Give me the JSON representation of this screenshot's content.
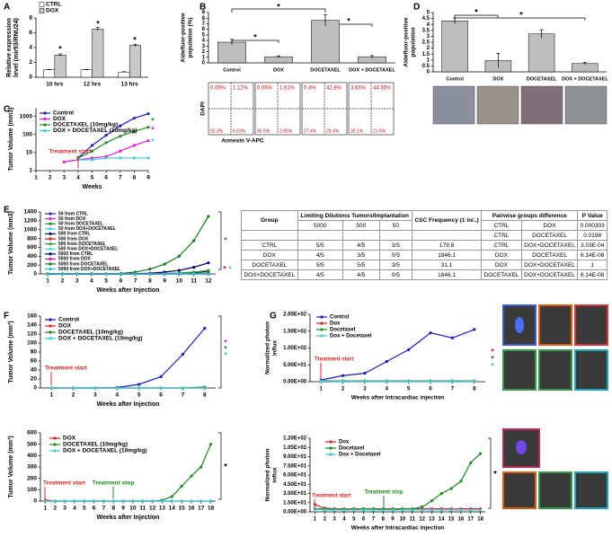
{
  "panel_labels": [
    "A",
    "B",
    "C",
    "D",
    "E",
    "F",
    "G"
  ],
  "flow_cytometry": {
    "ylabel": "DAPI",
    "xlabel": "Annexin V-APC",
    "quadrant_labels": [
      "0.09%",
      "1.12%",
      "0.06%",
      "1.61%",
      "0.4%",
      "42.8%",
      "3.65%",
      "44.65%",
      "92.3%",
      "6.63%",
      "95.5%",
      "2.85%",
      "27.4%",
      "29.4%",
      "30.1%",
      "21.6%"
    ]
  },
  "table": {
    "header": [
      "Group",
      "Limiting Dilutions Tumors/Implantation",
      "CSC Frequency (1 in/..)",
      "Pairwise groups difference",
      "P Value"
    ],
    "dilutions": [
      "5000",
      "500",
      "50"
    ],
    "pairs": [
      [
        "CTRL",
        "DOX",
        "0.000303"
      ],
      [
        "CTRL",
        "DOCETAXEL",
        "0.0198"
      ],
      [
        "CTRL",
        "DOX+DOCETAXEL",
        "3.03E-04"
      ],
      [
        "DOX",
        "DOCETAXEL",
        "6.14E-08"
      ],
      [
        "DOX",
        "DOX+DOCETAXEL",
        "1"
      ],
      [
        "DOCETAXEL",
        "DOX+DOCETAXEL",
        "6.14E-08"
      ]
    ],
    "groups": [
      [
        "CTRL",
        "5/5",
        "4/5",
        "3/5",
        "179.8"
      ],
      [
        "DOX",
        "4/5",
        "3/5",
        "0/5",
        "1846.1"
      ],
      [
        "DOCETAXEL",
        "5/5",
        "5/5",
        "3/5",
        "31.1"
      ],
      [
        "DOX+DOCETAXEL",
        "4/5",
        "4/5",
        "0/5",
        "1846.1"
      ]
    ]
  },
  "chart_data": [
    {
      "type": "bar",
      "categories": [
        "10 hrs",
        "12 hrs",
        "13 hrs"
      ],
      "series": [
        {
          "name": "CTRL",
          "color": "#ffffff",
          "values": [
            1,
            1,
            0.7
          ],
          "errors": [
            0.05,
            0.05,
            0.05
          ]
        },
        {
          "name": "DOX",
          "color": "#c8c8c8",
          "values": [
            3,
            6.5,
            4.3
          ],
          "errors": [
            0.15,
            0.2,
            0.15
          ]
        }
      ],
      "ylabel": [
        "Relative expression",
        "level (mir93/RNU24)"
      ],
      "ylim": [
        0,
        8
      ],
      "yticks": [
        0,
        2,
        4,
        6,
        8
      ],
      "legend": "upper left",
      "significance": [
        "*",
        "*",
        "*"
      ]
    },
    {
      "type": "bar",
      "categories": [
        "Control",
        "DOX",
        "DOCETAXEL",
        "DOX + DOCETAXEL"
      ],
      "color": "#bdbdbd",
      "values": [
        3.7,
        1.1,
        7.6,
        1.1
      ],
      "errors": [
        0.5,
        0.15,
        1.0,
        0.2
      ],
      "ylabel": [
        "Aldefluor-positive",
        "population (%)"
      ],
      "ylim": [
        0,
        9
      ],
      "yticks": [
        0,
        1,
        2,
        3,
        4,
        5,
        6,
        7,
        8,
        9
      ],
      "significance": [
        "*",
        "*",
        "*"
      ]
    },
    {
      "type": "bar",
      "categories": [
        "Control",
        "DOX",
        "DOCETAXEL",
        "DOX + DOCETAXEL"
      ],
      "color": "#bdbdbd",
      "values": [
        4.3,
        0.95,
        3.2,
        0.7
      ],
      "errors": [
        0.25,
        0.6,
        0.35,
        0.1
      ],
      "ylabel": [
        "Aldefluor-positive",
        "population"
      ],
      "ylim": [
        0,
        5
      ],
      "yticks": [
        0,
        0.5,
        1,
        1.5,
        2,
        2.5,
        3,
        3.5,
        4,
        4.5,
        5
      ],
      "significance": [
        "*",
        "*"
      ]
    },
    {
      "type": "line",
      "log_y": true,
      "x": [
        1,
        2,
        3,
        4,
        5,
        6,
        7,
        8,
        9
      ],
      "xlim": [
        1,
        9
      ],
      "xticks": [
        1,
        2,
        3,
        4,
        5,
        6,
        7,
        8,
        9
      ],
      "ylim": [
        1,
        3000
      ],
      "yticks": [
        1,
        10,
        100,
        1000
      ],
      "xlabel": "Weeks",
      "ylabel": "Tumor Volume (mm3)",
      "legend": "upper left",
      "series": [
        {
          "name": "Control",
          "color": "#1a1acc",
          "values": [
            null,
            null,
            null,
            5,
            25,
            90,
            300,
            800,
            1400
          ]
        },
        {
          "name": "DOX",
          "color": "#e619e6",
          "values": [
            null,
            null,
            3,
            4,
            5,
            6,
            12,
            25,
            45
          ]
        },
        {
          "name": "DOCETAXEL (10mg/kg)",
          "color": "#1a8c1a",
          "values": [
            null,
            null,
            null,
            5,
            12,
            35,
            80,
            150,
            250
          ]
        },
        {
          "name": "DOX + DOCETAXEL (10mg/kg)",
          "color": "#33ccdd",
          "values": [
            null,
            null,
            null,
            4,
            4,
            5,
            5,
            5,
            5
          ]
        }
      ],
      "annotations": [
        "Treatment start"
      ],
      "significance": [
        "*",
        "*",
        "*"
      ]
    },
    {
      "type": "line",
      "x": [
        1,
        2,
        3,
        4,
        5,
        6,
        7,
        8,
        9,
        10,
        11,
        12
      ],
      "xlim": [
        0.5,
        12.5
      ],
      "xticks": [
        1,
        2,
        3,
        4,
        5,
        6,
        7,
        8,
        9,
        10,
        11,
        12
      ],
      "ylim": [
        0,
        1400
      ],
      "yticks": [
        0,
        200,
        400,
        600,
        800,
        1000,
        1200,
        1400
      ],
      "xlabel": "Weeks after Injection",
      "ylabel": "Tumor Volume (mm3)",
      "legend": "upper left",
      "series": [
        {
          "name": "50 from CTRL",
          "color": "#2a2ad0",
          "values": [
            0,
            0,
            0,
            0,
            0,
            0,
            0,
            0,
            0,
            0,
            5,
            10
          ]
        },
        {
          "name": "50 from DOX",
          "color": "#e619e6",
          "values": [
            0,
            0,
            0,
            0,
            0,
            0,
            0,
            0,
            0,
            0,
            0,
            0
          ]
        },
        {
          "name": "50 from DOCETAXEL",
          "color": "#1a8c1a",
          "values": [
            0,
            0,
            0,
            0,
            0,
            0,
            0,
            0,
            0,
            5,
            10,
            20
          ]
        },
        {
          "name": "50 from DOX+DOCETAXEL",
          "color": "#33ccdd",
          "values": [
            0,
            0,
            0,
            0,
            0,
            0,
            0,
            0,
            0,
            0,
            0,
            0
          ]
        },
        {
          "name": "500 from CTRL",
          "color": "#101070",
          "values": [
            0,
            0,
            0,
            0,
            0,
            0,
            0,
            0,
            5,
            15,
            30,
            60
          ]
        },
        {
          "name": "500 from DOX",
          "color": "#e02020",
          "values": [
            0,
            0,
            0,
            0,
            0,
            0,
            0,
            0,
            0,
            0,
            0,
            0
          ]
        },
        {
          "name": "500 from DOCETAXEL",
          "color": "#2e9e2e",
          "values": [
            0,
            0,
            0,
            0,
            0,
            0,
            0,
            5,
            10,
            20,
            40,
            80
          ]
        },
        {
          "name": "500 from DOX+DOCETAXEL",
          "color": "#3ad4e4",
          "values": [
            0,
            0,
            0,
            0,
            0,
            0,
            0,
            0,
            0,
            0,
            0,
            0
          ]
        },
        {
          "name": "5000 from CTRL",
          "color": "#000060",
          "values": [
            0,
            0,
            0,
            0,
            0,
            0,
            5,
            15,
            40,
            80,
            150,
            250
          ]
        },
        {
          "name": "5000 from DOX",
          "color": "#d010d0",
          "values": [
            0,
            0,
            0,
            0,
            0,
            0,
            0,
            0,
            0,
            0,
            0,
            0
          ]
        },
        {
          "name": "5000 from DOCETAXEL",
          "color": "#127a12",
          "values": [
            0,
            0,
            0,
            0,
            0,
            10,
            40,
            110,
            220,
            400,
            750,
            1300
          ]
        },
        {
          "name": "5000 from DOX+DOCETAXEL",
          "color": "#28bcd0",
          "values": [
            0,
            0,
            0,
            0,
            0,
            0,
            0,
            0,
            0,
            0,
            0,
            0
          ]
        }
      ],
      "significance": [
        "*",
        "*",
        "*"
      ]
    },
    {
      "type": "line",
      "x": [
        1,
        2,
        3,
        4,
        5,
        6,
        7,
        8
      ],
      "xlim": [
        0.5,
        8.5
      ],
      "xticks": [
        1,
        2,
        3,
        4,
        5,
        6,
        7,
        8
      ],
      "ylim": [
        0,
        160
      ],
      "yticks": [
        0,
        20,
        40,
        60,
        80,
        100,
        120,
        140,
        160
      ],
      "xlabel": "Weeks after Injection",
      "ylabel": "Tumor Volume (mm³)",
      "legend": "upper left",
      "series": [
        {
          "name": "Control",
          "color": "#1a1acc",
          "values": [
            0,
            0,
            0,
            1,
            8,
            25,
            75,
            133
          ]
        },
        {
          "name": "DOX",
          "color": "#e02020",
          "values": [
            0,
            0,
            0,
            0,
            0,
            0,
            0,
            0
          ]
        },
        {
          "name": "DOCETAXEL (10mg/kg)",
          "color": "#1a8c1a",
          "values": [
            0,
            0,
            0,
            0,
            0,
            0,
            0,
            2
          ]
        },
        {
          "name": "DOX + DOCETAXEL (10mg/kg)",
          "color": "#33ccdd",
          "values": [
            0,
            0,
            0,
            0,
            0,
            0,
            0,
            0
          ]
        }
      ],
      "annotations": [
        "Treatment start"
      ],
      "significance": [
        "*",
        "*",
        "*"
      ]
    },
    {
      "type": "line",
      "x": [
        1,
        2,
        3,
        4,
        5,
        6,
        7,
        8,
        9,
        10,
        11,
        12,
        13,
        14,
        15,
        16,
        17,
        18
      ],
      "xlim": [
        0.5,
        18.5
      ],
      "xticks": [
        1,
        2,
        3,
        4,
        5,
        6,
        7,
        8,
        9,
        10,
        11,
        12,
        13,
        14,
        15,
        16,
        17,
        18
      ],
      "ylim": [
        0,
        600
      ],
      "yticks": [
        0,
        100,
        200,
        300,
        400,
        500,
        600
      ],
      "xlabel": "Weeks after Injection",
      "ylabel": "Tumor Volume (mm³)",
      "legend": "upper left",
      "series": [
        {
          "name": "DOX",
          "color": "#e02020",
          "values": [
            10,
            0,
            0,
            0,
            0,
            0,
            0,
            0,
            0,
            0,
            0,
            0,
            0,
            0,
            0,
            0,
            0,
            0
          ]
        },
        {
          "name": "DOCETAXEL (10mg/kg)",
          "color": "#1a8c1a",
          "values": [
            0,
            0,
            0,
            0,
            0,
            0,
            0,
            0,
            0,
            0,
            0,
            0,
            8,
            40,
            130,
            220,
            300,
            500
          ]
        },
        {
          "name": "DOX + DOCETAXEL (10mg/kg)",
          "color": "#33ccdd",
          "values": [
            0,
            0,
            0,
            0,
            0,
            0,
            0,
            0,
            0,
            0,
            0,
            0,
            0,
            0,
            0,
            0,
            0,
            0
          ]
        }
      ],
      "annotations": [
        "Treatment start",
        "Treatment stop"
      ],
      "significance": [
        "*"
      ]
    },
    {
      "type": "line",
      "x": [
        1,
        2,
        3,
        4,
        5,
        6,
        7,
        8
      ],
      "xlim": [
        0.5,
        8.5
      ],
      "xticks": [
        1,
        2,
        3,
        4,
        5,
        6,
        7,
        8
      ],
      "ylim": [
        0,
        200
      ],
      "yticks": [
        {
          "value": 0,
          "label": "0.00E+00"
        },
        {
          "value": 50,
          "label": "5.00E+01"
        },
        {
          "value": 100,
          "label": "1.00E+02"
        },
        {
          "value": 150,
          "label": "1.50E+02"
        },
        {
          "value": 200,
          "label": "2.00E+02"
        }
      ],
      "xlabel": "Weeks after Intracardiac injection",
      "ylabel": [
        "Normalized photon",
        "influx"
      ],
      "legend": "upper left",
      "series": [
        {
          "name": "Control",
          "color": "#1a1acc",
          "values": [
            5,
            18,
            25,
            60,
            95,
            145,
            130,
            155
          ]
        },
        {
          "name": "Dox",
          "color": "#e02020",
          "values": [
            3,
            2,
            2,
            2,
            2,
            2,
            2,
            2
          ]
        },
        {
          "name": "Docetaxel",
          "color": "#1a8c1a",
          "values": [
            2,
            2,
            2,
            2,
            2,
            2,
            2,
            2
          ]
        },
        {
          "name": "Dox + Docetaxel",
          "color": "#33ccdd",
          "values": [
            2,
            1,
            1,
            1,
            1,
            1,
            1,
            1
          ]
        }
      ],
      "annotations": [
        "Treatment start"
      ],
      "significance": [
        "*",
        "*",
        "*"
      ]
    },
    {
      "type": "line",
      "x": [
        1,
        2,
        3,
        4,
        5,
        6,
        7,
        8,
        9,
        10,
        11,
        12,
        13,
        14,
        15,
        16,
        17,
        18
      ],
      "xlim": [
        0.5,
        18.5
      ],
      "xticks": [
        1,
        2,
        3,
        4,
        5,
        6,
        7,
        8,
        9,
        10,
        11,
        12,
        13,
        14,
        15,
        16,
        17,
        18
      ],
      "ylim": [
        0,
        120
      ],
      "yticks": [
        {
          "value": 0,
          "label": "0.00E+00"
        },
        {
          "value": 15,
          "label": "1.50E+01"
        },
        {
          "value": 30,
          "label": "3.00E+01"
        },
        {
          "value": 45,
          "label": "4.50E+01"
        },
        {
          "value": 60,
          "label": "6.00E+01"
        },
        {
          "value": 75,
          "label": "7.50E+01"
        },
        {
          "value": 90,
          "label": "9.00E+01"
        },
        {
          "value": 105,
          "label": "1.05E+02"
        },
        {
          "value": 120,
          "label": "1.20E+02"
        }
      ],
      "xlabel": "Weeks after Intracardiac injection",
      "ylabel": [
        "Normalized photon",
        "influx"
      ],
      "legend": "upper left",
      "series": [
        {
          "name": "Dox",
          "color": "#e02020",
          "values": [
            12,
            6,
            5,
            5,
            5,
            5,
            5,
            5,
            5,
            5,
            5,
            5,
            5,
            5,
            5,
            5,
            5,
            5
          ]
        },
        {
          "name": "Docetaxel",
          "color": "#1a8c1a",
          "values": [
            5,
            5,
            4,
            4,
            4,
            5,
            5,
            4,
            4,
            5,
            5,
            8,
            18,
            30,
            38,
            50,
            80,
            95
          ]
        },
        {
          "name": "Dox + Docetaxel",
          "color": "#33ccdd",
          "values": [
            4,
            3,
            3,
            3,
            3,
            3,
            3,
            3,
            3,
            3,
            3,
            3,
            3,
            3,
            3,
            3,
            3,
            3
          ]
        }
      ],
      "annotations": [
        "Treatment start",
        "Treatment stop"
      ],
      "significance": [
        "*"
      ]
    }
  ]
}
